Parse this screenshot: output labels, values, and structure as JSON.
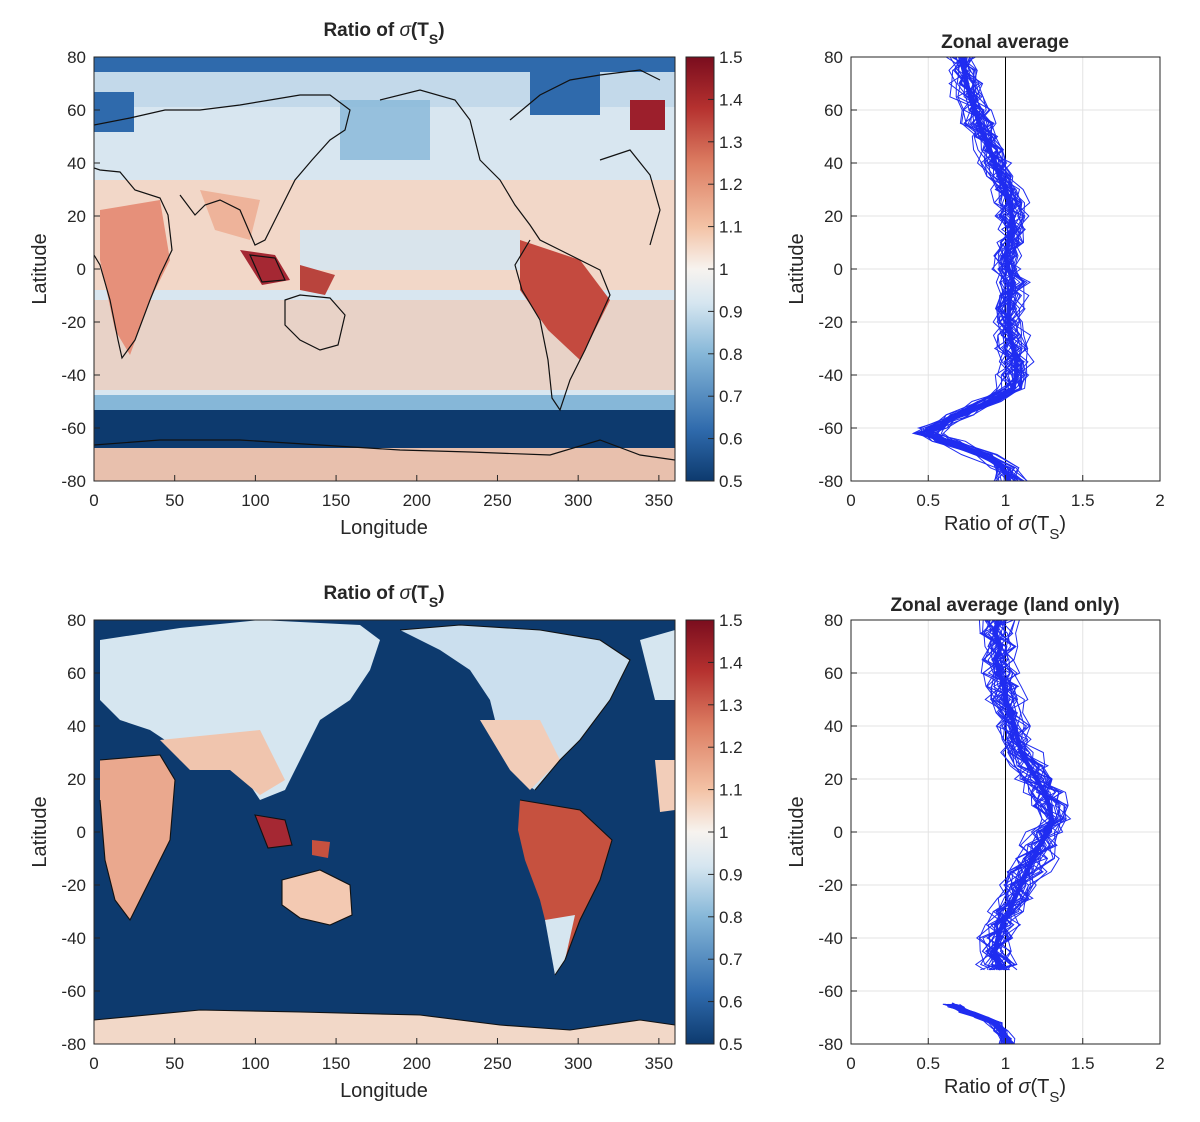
{
  "colors": {
    "line": "#1f2cf0",
    "axis": "#262626",
    "grid": "#e3e3e3",
    "ocean_mask": "#0d3a6e",
    "colormap": [
      "#0d3a6e",
      "#2f6aac",
      "#86b7d8",
      "#d6e6f0",
      "#f7f3ef",
      "#f3c2a5",
      "#dc7d62",
      "#b5312f",
      "#7a0d1e"
    ]
  },
  "chart_data": [
    {
      "id": "map_top",
      "type": "heatmap",
      "title_prefix": "Ratio of ",
      "title_symbol": "σ",
      "title_open": "(T",
      "title_sub": "S",
      "title_close": ")",
      "xlabel": "Longitude",
      "ylabel": "Latitude",
      "xlim": [
        0,
        360
      ],
      "ylim": [
        -80,
        80
      ],
      "xticks": [
        "0",
        "50",
        "100",
        "150",
        "200",
        "250",
        "300",
        "350"
      ],
      "yticks": [
        "80",
        "60",
        "40",
        "20",
        "0",
        "-20",
        "-40",
        "-60",
        "-80"
      ],
      "colorbar": {
        "clim": [
          0.5,
          1.5
        ],
        "ticks": [
          "1.5",
          "1.4",
          "1.3",
          "1.2",
          "1.1",
          "1",
          "0.9",
          "0.8",
          "0.7",
          "0.6",
          "0.5"
        ]
      },
      "land_only": false
    },
    {
      "id": "zonal_top",
      "type": "line",
      "title": "Zonal average",
      "xlabel_prefix": "Ratio of ",
      "xlabel_symbol": "σ",
      "xlabel_open": "(T",
      "xlabel_sub": "S",
      "xlabel_close": ")",
      "ylabel": "Latitude",
      "xlim": [
        0,
        2
      ],
      "ylim": [
        -80,
        80
      ],
      "xticks": [
        "0",
        "0.5",
        "1",
        "1.5",
        "2"
      ],
      "yticks": [
        "80",
        "60",
        "40",
        "20",
        "0",
        "-20",
        "-40",
        "-60",
        "-80"
      ],
      "grid": true,
      "reference_x": 1,
      "mean_series": {
        "lat": [
          80,
          75,
          70,
          65,
          60,
          55,
          50,
          45,
          40,
          35,
          30,
          25,
          20,
          15,
          10,
          5,
          0,
          -5,
          -10,
          -15,
          -20,
          -25,
          -30,
          -35,
          -40,
          -45,
          -50,
          -55,
          -60,
          -62,
          -65,
          -70,
          -75,
          -80
        ],
        "ratio": [
          0.72,
          0.73,
          0.75,
          0.77,
          0.8,
          0.83,
          0.86,
          0.9,
          0.93,
          0.96,
          1.0,
          1.03,
          1.04,
          1.04,
          1.02,
          1.0,
          1.02,
          1.05,
          1.03,
          1.02,
          1.02,
          1.03,
          1.05,
          1.07,
          1.07,
          1.05,
          0.9,
          0.7,
          0.55,
          0.5,
          0.62,
          0.85,
          0.98,
          1.02
        ]
      }
    },
    {
      "id": "map_bottom",
      "type": "heatmap",
      "title_prefix": "Ratio of ",
      "title_symbol": "σ",
      "title_open": "(T",
      "title_sub": "S",
      "title_close": ")",
      "xlabel": "Longitude",
      "ylabel": "Latitude",
      "xlim": [
        0,
        360
      ],
      "ylim": [
        -80,
        80
      ],
      "xticks": [
        "0",
        "50",
        "100",
        "150",
        "200",
        "250",
        "300",
        "350"
      ],
      "yticks": [
        "80",
        "60",
        "40",
        "20",
        "0",
        "-20",
        "-40",
        "-60",
        "-80"
      ],
      "colorbar": {
        "clim": [
          0.5,
          1.5
        ],
        "ticks": [
          "1.5",
          "1.4",
          "1.3",
          "1.2",
          "1.1",
          "1",
          "0.9",
          "0.8",
          "0.7",
          "0.6",
          "0.5"
        ]
      },
      "land_only": true
    },
    {
      "id": "zonal_bottom",
      "type": "line",
      "title": "Zonal average (land only)",
      "xlabel_prefix": "Ratio of ",
      "xlabel_symbol": "σ",
      "xlabel_open": "(T",
      "xlabel_sub": "S",
      "xlabel_close": ")",
      "ylabel": "Latitude",
      "xlim": [
        0,
        2
      ],
      "ylim": [
        -80,
        80
      ],
      "xticks": [
        "0",
        "0.5",
        "1",
        "1.5",
        "2"
      ],
      "yticks": [
        "80",
        "60",
        "40",
        "20",
        "0",
        "-20",
        "-40",
        "-60",
        "-80"
      ],
      "grid": true,
      "reference_x": 1,
      "mean_series": {
        "lat": [
          80,
          75,
          70,
          65,
          60,
          55,
          50,
          45,
          40,
          35,
          30,
          25,
          20,
          15,
          10,
          5,
          0,
          -5,
          -10,
          -15,
          -20,
          -25,
          -30,
          -35,
          -40,
          -45,
          -50,
          -52
        ],
        "ratio": [
          0.95,
          0.93,
          0.97,
          0.94,
          0.96,
          0.99,
          1.0,
          1.03,
          1.06,
          1.08,
          1.1,
          1.15,
          1.2,
          1.25,
          1.28,
          1.3,
          1.27,
          1.22,
          1.18,
          1.14,
          1.1,
          1.06,
          1.02,
          0.98,
          0.95,
          0.93,
          0.96,
          0.95
        ]
      },
      "mean_series_south": {
        "lat": [
          -65,
          -66,
          -68,
          -70,
          -72,
          -75,
          -78,
          -80
        ],
        "ratio": [
          0.65,
          0.68,
          0.75,
          0.85,
          0.93,
          0.97,
          1.0,
          1.02
        ]
      }
    }
  ]
}
